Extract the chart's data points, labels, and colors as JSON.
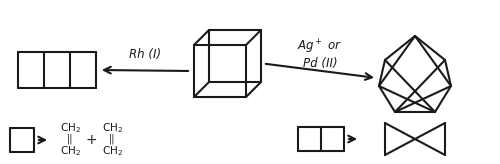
{
  "bg_color": "#ffffff",
  "line_color": "#1a1a1a",
  "lw": 1.5
}
